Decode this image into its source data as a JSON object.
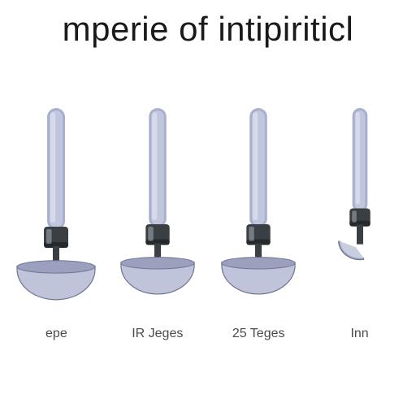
{
  "type": "infographic",
  "background_color": "#ffffff",
  "title": {
    "text": "mperie of intipiriticl",
    "color": "#1a1a1a",
    "fontsize": 42
  },
  "labels": {
    "color": "#4a4a4a",
    "fontsize": 16,
    "items": [
      "epe",
      "IR Jeges",
      "25 Teges",
      "Inn"
    ]
  },
  "tool_style": {
    "handle_fill": "#a9b0cf",
    "handle_inner": "#c0c6dc",
    "handle_highlight": "#d6daea",
    "ferrule_fill": "#3a3f44",
    "ferrule_dark": "#26292c",
    "ferrule_highlight": "#8f969c",
    "bowl_fill": "#bfc4db",
    "bowl_stroke": "#6f7690",
    "bowl_dark": "#9aa0bd"
  },
  "tools": [
    {
      "scale": 1.0,
      "show_bowl": true,
      "bowl_rx": 48
    },
    {
      "scale": 0.98,
      "show_bowl": true,
      "bowl_rx": 46
    },
    {
      "scale": 0.98,
      "show_bowl": true,
      "bowl_rx": 46
    },
    {
      "scale": 0.85,
      "show_bowl": false,
      "bowl_rx": 30
    }
  ]
}
